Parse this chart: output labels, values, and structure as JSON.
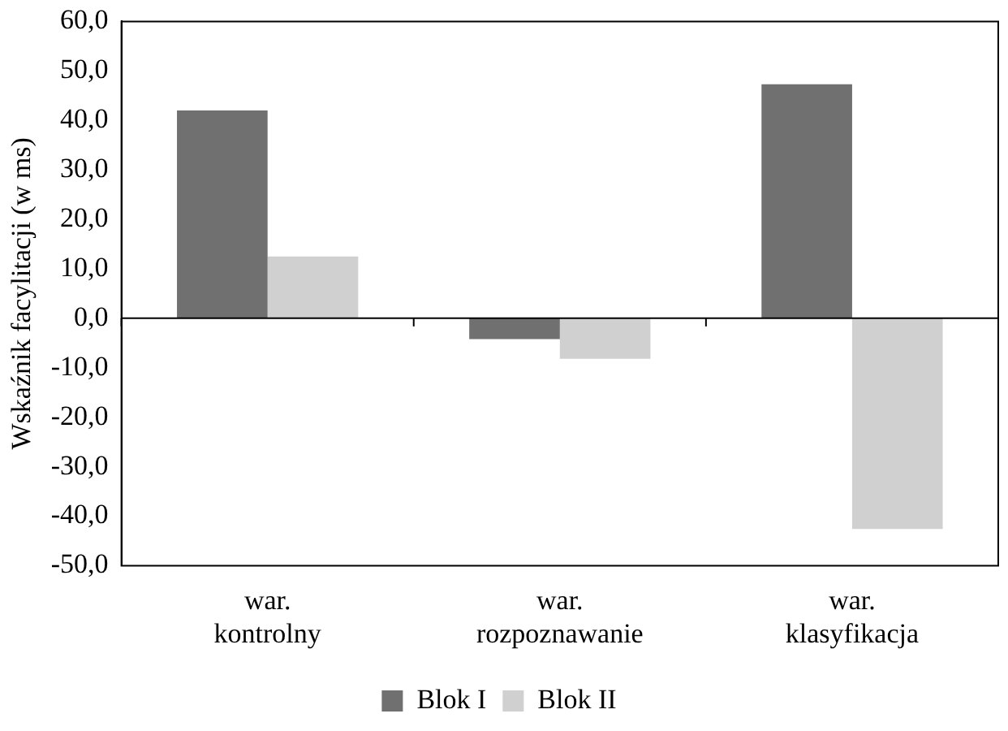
{
  "chart_data": {
    "type": "bar",
    "ylabel": "Wskaźnik facylitacji (w ms)",
    "categories": [
      "war. kontrolny",
      "war. rozpoznawanie",
      "war. klasyfikacja"
    ],
    "series": [
      {
        "name": "Blok I",
        "color": "#707070",
        "values": [
          42.0,
          -4.2,
          47.3
        ]
      },
      {
        "name": "Blok II",
        "color": "#d0d0d0",
        "values": [
          12.5,
          -8.2,
          -42.6
        ]
      }
    ],
    "ylim": [
      -50,
      60
    ],
    "yticks": [
      {
        "value": -50,
        "label": "-50,0"
      },
      {
        "value": -40,
        "label": "-40,0"
      },
      {
        "value": -30,
        "label": "-30,0"
      },
      {
        "value": -20,
        "label": "-20,0"
      },
      {
        "value": -10,
        "label": "-10,0"
      },
      {
        "value": 0,
        "label": "0,0"
      },
      {
        "value": 10,
        "label": "10,0"
      },
      {
        "value": 20,
        "label": "20,0"
      },
      {
        "value": 30,
        "label": "30,0"
      },
      {
        "value": 40,
        "label": "40,0"
      },
      {
        "value": 50,
        "label": "50,0"
      },
      {
        "value": 60,
        "label": "60,0"
      }
    ],
    "ref_lines": [
      {
        "axis": "y",
        "value": 0
      }
    ],
    "grid": false,
    "legend": "bottom"
  }
}
